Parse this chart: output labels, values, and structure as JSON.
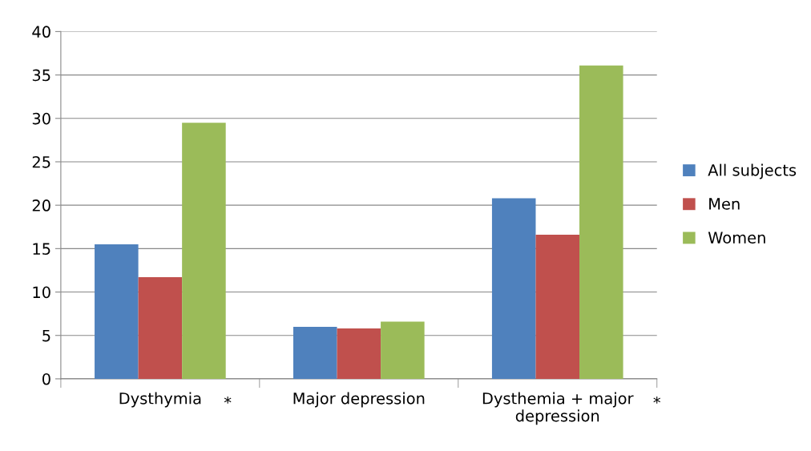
{
  "chart_data": {
    "type": "bar",
    "categories": [
      "Dysthymia",
      "Major depression",
      "Dysthemia + major\ndepression"
    ],
    "series": [
      {
        "name": "All subjects",
        "color": "#4f81bd",
        "values": [
          15.5,
          6.0,
          20.8
        ]
      },
      {
        "name": "Men",
        "color": "#c0504d",
        "values": [
          11.7,
          5.8,
          16.6
        ]
      },
      {
        "name": "Women",
        "color": "#9bbb59",
        "values": [
          29.5,
          6.6,
          36.1
        ]
      }
    ],
    "ylim": [
      0,
      40
    ],
    "yticks": [
      0,
      5,
      10,
      15,
      20,
      25,
      30,
      35,
      40
    ],
    "grid": "y",
    "legend": "right",
    "annotations": [
      "*",
      "*"
    ]
  }
}
